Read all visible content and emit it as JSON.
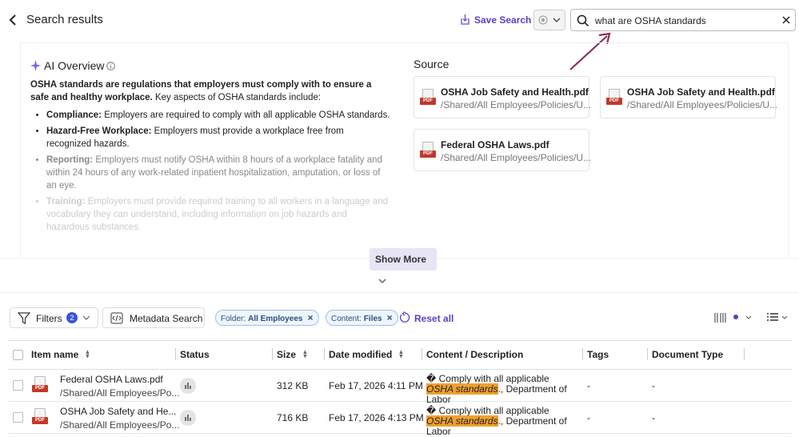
{
  "header": {
    "title": "Search results",
    "save_search": "Save Search",
    "search_query": "what are OSHA standards"
  },
  "overview": {
    "title": "AI Overview",
    "intro_bold": "OSHA standards are regulations that employers must comply with to ensure a safe and healthy workplace.",
    "intro_rest": " Key aspects of OSHA standards include:",
    "items": [
      {
        "term": "Compliance:",
        "text": " Employers are required to comply with all applicable OSHA standards."
      },
      {
        "term": "Hazard-Free Workplace:",
        "text": " Employers must provide a workplace free from recognized hazards."
      },
      {
        "term": "Reporting:",
        "text": " Employers must notify OSHA within 8 hours of a workplace fatality and within 24 hours of any work-related inpatient hospitalization, amputation, or loss of an eye."
      },
      {
        "term": "Training:",
        "text": " Employers must provide required training to all workers in a language and vocabulary they can understand, including information on job hazards and hazardous substances."
      }
    ]
  },
  "source": {
    "title": "Source",
    "files": [
      {
        "badge": "PDF",
        "name": "OSHA Job Safety and Health.pdf",
        "path": "/Shared/All Employees/Policies/U..."
      },
      {
        "badge": "PDF",
        "name": "OSHA Job Safety and Health.pdf",
        "path": "/Shared/All Employees/Policies/U..."
      },
      {
        "badge": "PDF",
        "name": "Federal OSHA Laws.pdf",
        "path": "/Shared/All Employees/Policies/U..."
      }
    ]
  },
  "show_more": "Show More",
  "toolbar": {
    "filters": "Filters",
    "filter_count": 2,
    "metadata_search": "Metadata Search",
    "chips": [
      {
        "label": "Folder:",
        "value": "All Employees"
      },
      {
        "label": "Content:",
        "value": "Files"
      }
    ],
    "reset": "Reset all"
  },
  "table": {
    "columns": [
      "Item name",
      "Status",
      "Size",
      "Date modified",
      "Content / Description",
      "Tags",
      "Document Type"
    ],
    "rows": [
      {
        "badge": "PDF",
        "name": "Federal OSHA Laws.pdf",
        "path": "/Shared/All Employees/Po...",
        "size": "312 KB",
        "date": "Feb 17, 2026 4:11 PM",
        "content_prefix": "� Comply with all applicable ",
        "content_highlight": "OSHA standards",
        "content_suffix": "., Department of Labor",
        "tags": "-",
        "doc_type": "-"
      },
      {
        "badge": "PDF",
        "name": "OSHA Job Safety and He...",
        "path": "/Shared/All Employees/Po...",
        "size": "716 KB",
        "date": "Feb 17, 2026 4:13 PM",
        "content_prefix": "� Comply with all applicable ",
        "content_highlight": "OSHA standards",
        "content_suffix": "., Department of Labor",
        "tags": "-",
        "doc_type": "-"
      }
    ]
  }
}
